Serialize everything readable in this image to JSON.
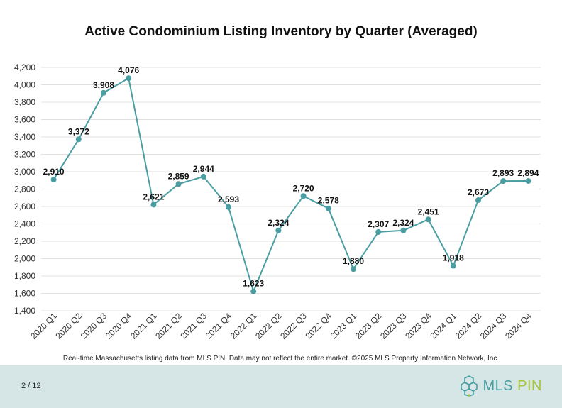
{
  "chart_data": {
    "type": "line",
    "title": "Active Condominium Listing Inventory by Quarter (Averaged)",
    "xlabel": "",
    "ylabel": "",
    "ylim": [
      1400,
      4200
    ],
    "yticks": [
      1400,
      1600,
      1800,
      2000,
      2200,
      2400,
      2600,
      2800,
      3000,
      3200,
      3400,
      3600,
      3800,
      4000,
      4200
    ],
    "grid": true,
    "categories": [
      "2020 Q1",
      "2020 Q2",
      "2020 Q3",
      "2020 Q4",
      "2021 Q1",
      "2021 Q2",
      "2021 Q3",
      "2021 Q4",
      "2022 Q1",
      "2022 Q2",
      "2022 Q3",
      "2022 Q4",
      "2023 Q1",
      "2023 Q2",
      "2023 Q3",
      "2023 Q4",
      "2024 Q1",
      "2024 Q2",
      "2024 Q3",
      "2024 Q4"
    ],
    "values": [
      2910,
      3372,
      3908,
      4076,
      2621,
      2859,
      2944,
      2593,
      1623,
      2324,
      2720,
      2578,
      1880,
      2307,
      2324,
      2451,
      1918,
      2673,
      2893,
      2894
    ],
    "data_labels": [
      "2,910",
      "3,372",
      "3,908",
      "4,076",
      "2,621",
      "2,859",
      "2,944",
      "2,593",
      "1,623",
      "2,324",
      "2,720",
      "2,578",
      "1,880",
      "2,307",
      "2,324",
      "2,451",
      "1,918",
      "2,673",
      "2,893",
      "2,894"
    ],
    "line_color": "#4a9ea2"
  },
  "footnote": "Real-time Massachusetts listing data from MLS PIN. Data may not reflect the entire market. ©2025 MLS Property Information Network, Inc.",
  "footer": {
    "page": "2 / 12",
    "logo_part1": "MLS",
    "logo_part2": "PIN",
    "logo_icon": "network-molecule-icon"
  }
}
